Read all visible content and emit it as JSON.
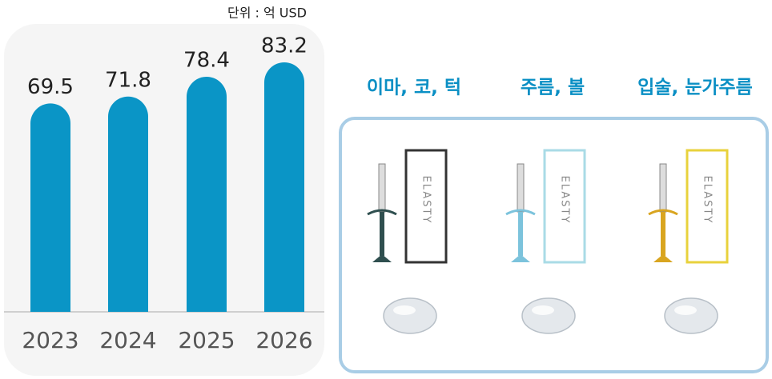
{
  "chart_data": {
    "type": "bar",
    "unit_note": "단위 : 억 USD",
    "categories": [
      "2023",
      "2024",
      "2025",
      "2026"
    ],
    "values": [
      69.5,
      71.8,
      78.4,
      83.2
    ],
    "color": "#0a95c6"
  },
  "products": {
    "labels": [
      "이마, 코, 턱",
      "주름, 볼",
      "입술, 눈가주름"
    ],
    "brand": "ELASTY"
  }
}
